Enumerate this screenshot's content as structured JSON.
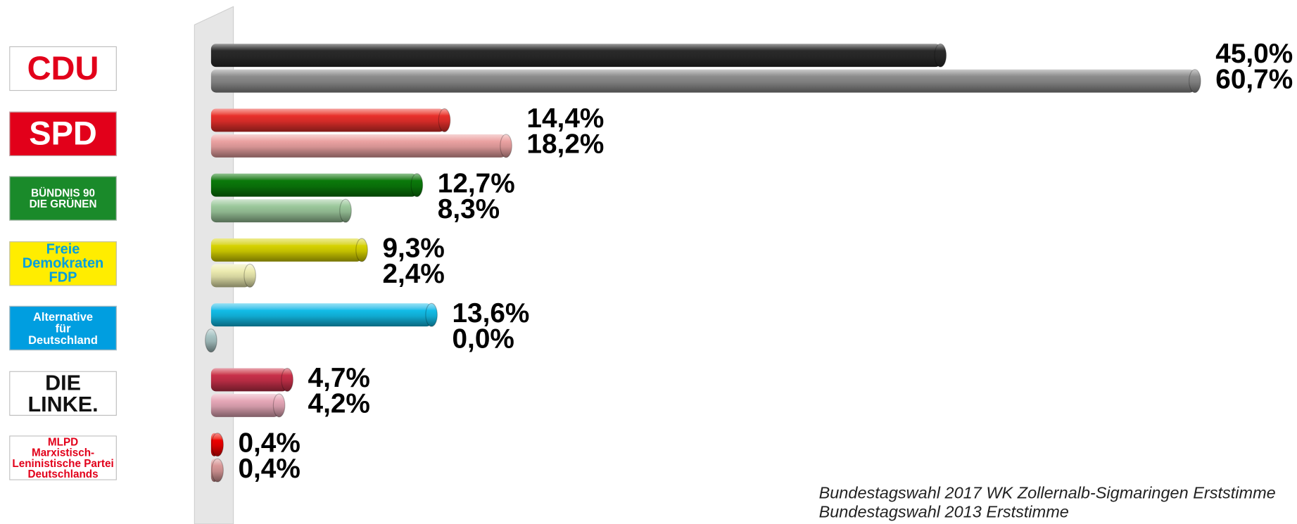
{
  "chart_data": {
    "type": "bar",
    "orientation": "horizontal",
    "categories": [
      "CDU",
      "SPD",
      "BÜNDNIS 90\nDIE GRÜNEN",
      "Freie\nDemokraten\nFDP",
      "Alternative\nfür\nDeutschland",
      "DIE LINKE.",
      "MLPD\nMarxistisch-Leninistische Partei Deutschlands"
    ],
    "xlim": [
      0,
      70
    ],
    "series": [
      {
        "name": "Bundestagswahl 2017 WK Zollernalb-Sigmaringen Erststimme",
        "colors": [
          "#2a2a2a",
          "#e8302c",
          "#0a7a0a",
          "#d8d400",
          "#12bde8",
          "#c8304a",
          "#ee0000"
        ],
        "values": [
          45.0,
          14.4,
          12.7,
          9.3,
          13.6,
          4.7,
          0.4
        ],
        "value_labels": [
          "45,0%",
          "14,4%",
          "12,7%",
          "9,3%",
          "13,6%",
          "4,7%",
          "0,4%"
        ]
      },
      {
        "name": "Bundestagswahl 2013 Erststimme",
        "colors": [
          "#8c8c8c",
          "#eba2a2",
          "#9cc89c",
          "#ecebb0",
          "#a8c4c4",
          "#e6a8b8",
          "#d89898"
        ],
        "values": [
          60.7,
          18.2,
          8.3,
          2.4,
          0.0,
          4.2,
          0.4
        ],
        "value_labels": [
          "60,7%",
          "18,2%",
          "8,3%",
          "2,4%",
          "0,0%",
          "4,2%",
          "0,4%"
        ]
      }
    ]
  }
}
